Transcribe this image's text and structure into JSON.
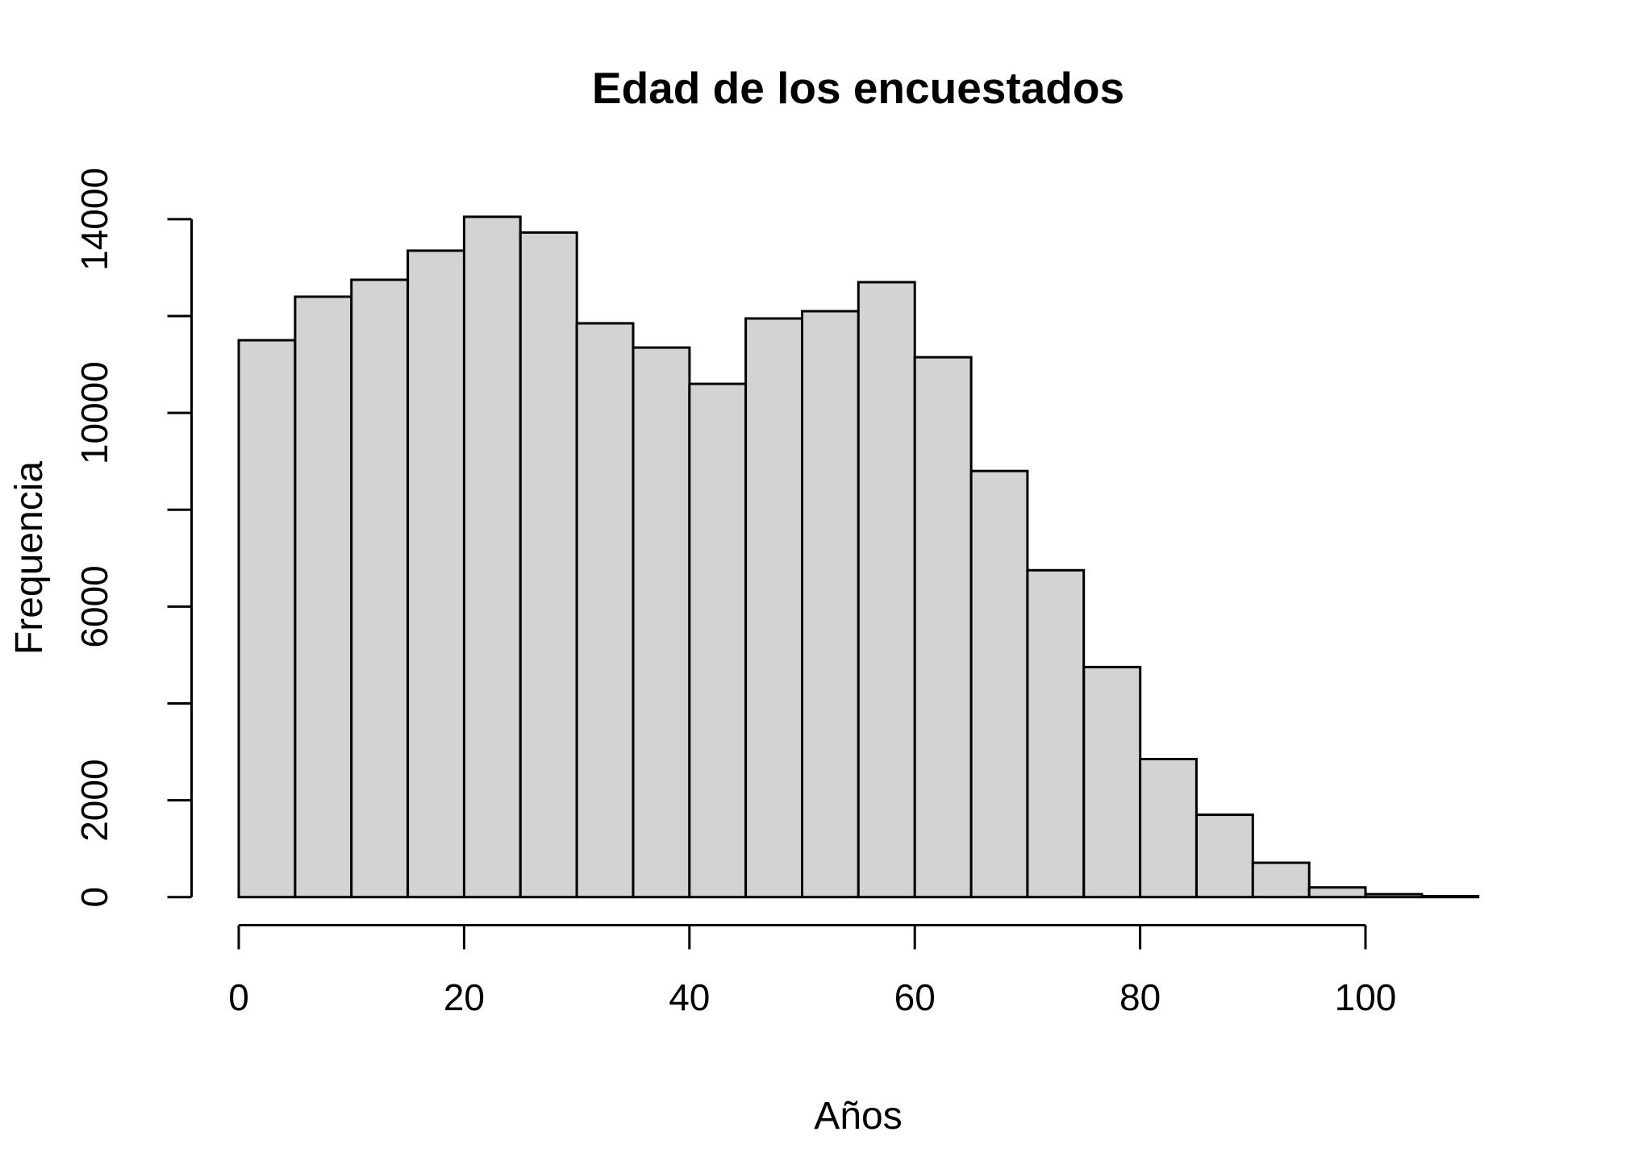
{
  "chart_data": {
    "type": "bar",
    "subtype": "histogram",
    "title": "Edad de los encuestados",
    "xlabel": "Años",
    "ylabel": "Frequencia",
    "bin_start": 0,
    "bin_width": 5,
    "bin_edges": [
      0,
      5,
      10,
      15,
      20,
      25,
      30,
      35,
      40,
      45,
      50,
      55,
      60,
      65,
      70,
      75,
      80,
      85,
      90,
      95,
      100,
      105,
      110
    ],
    "counts": [
      11500,
      12400,
      12750,
      13350,
      14050,
      13725,
      11850,
      11350,
      10600,
      11950,
      12100,
      12700,
      11150,
      8800,
      6750,
      4750,
      2850,
      1700,
      710,
      200,
      60,
      20
    ],
    "xlim": [
      0,
      110
    ],
    "ylim": [
      0,
      14000
    ],
    "x_ticks": [
      {
        "value": 0,
        "label": "0"
      },
      {
        "value": 20,
        "label": "20"
      },
      {
        "value": 40,
        "label": "40"
      },
      {
        "value": 60,
        "label": "60"
      },
      {
        "value": 80,
        "label": "80"
      },
      {
        "value": 100,
        "label": "100"
      }
    ],
    "y_ticks": [
      {
        "value": 0,
        "label": "0"
      },
      {
        "value": 2000,
        "label": "2000"
      },
      {
        "value": 4000,
        "label": ""
      },
      {
        "value": 6000,
        "label": "6000"
      },
      {
        "value": 8000,
        "label": ""
      },
      {
        "value": 10000,
        "label": "10000"
      },
      {
        "value": 12000,
        "label": ""
      },
      {
        "value": 14000,
        "label": "14000"
      }
    ],
    "grid": false,
    "legend": "none",
    "colors": {
      "bar_fill": "#d3d3d3",
      "bar_border": "#000000",
      "axis": "#000000",
      "background": "#ffffff"
    }
  }
}
